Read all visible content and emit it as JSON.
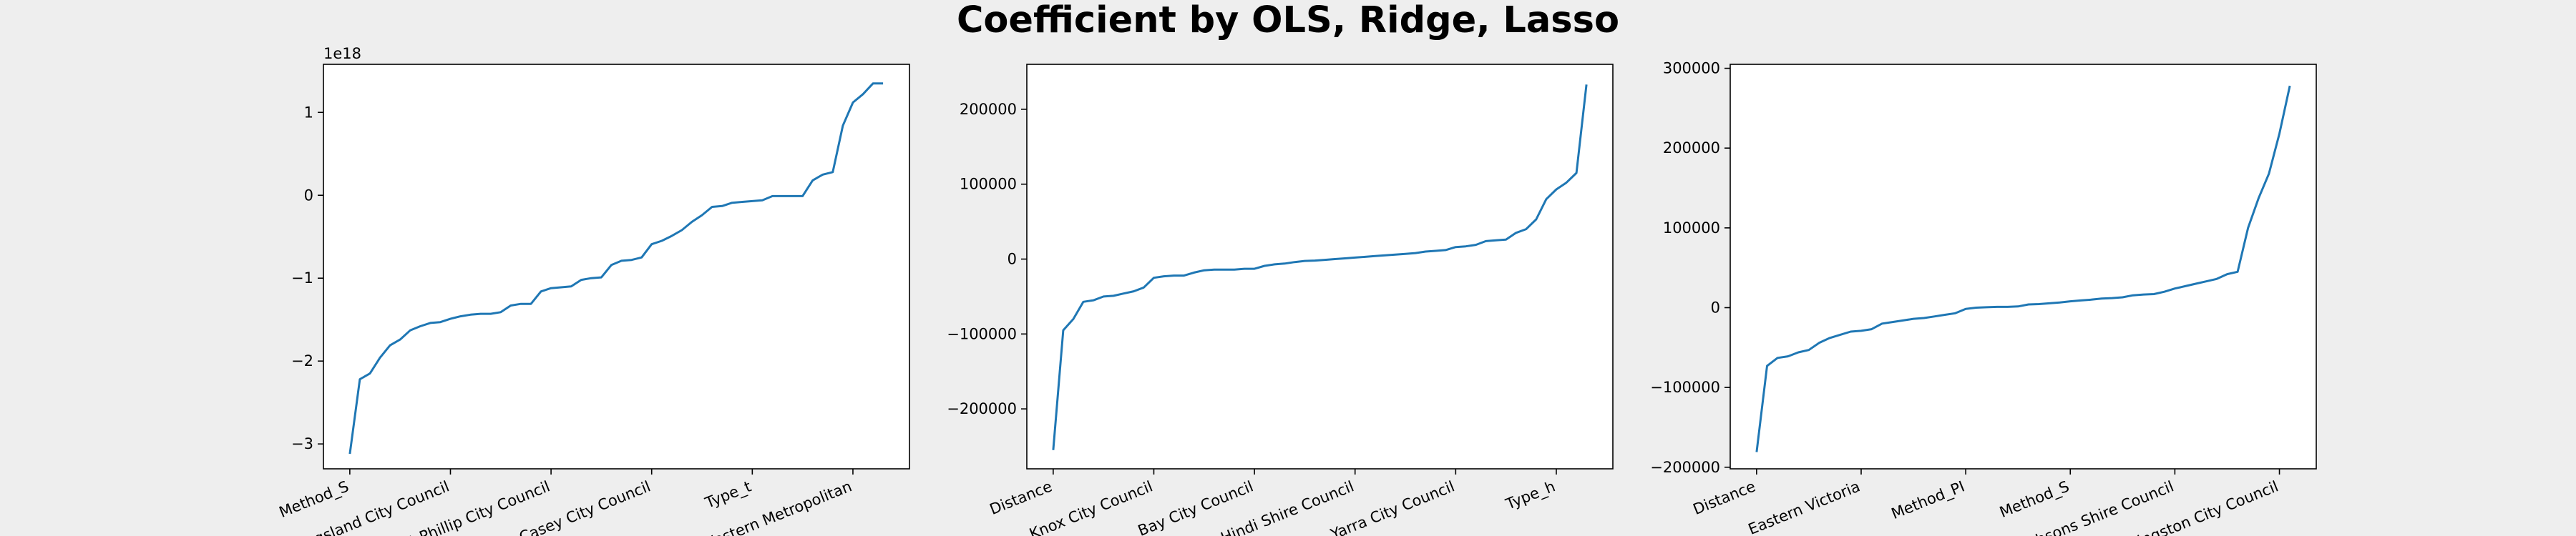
{
  "figure": {
    "title": "Coefficient by OLS, Ridge, Lasso"
  },
  "chart_data": [
    {
      "type": "line",
      "title": "",
      "xlabel": "",
      "ylabel": "",
      "offset_label": "1e18",
      "ylim": [
        -3.3,
        1.58
      ],
      "y_ticks": [
        -3,
        -2,
        -1,
        0,
        1
      ],
      "x_tick_labels": [
        "Method_S",
        "Kingsland City Council",
        "Port Phillip City Council",
        "Casey City Council",
        "Type_t",
        "Western Metropolitan"
      ],
      "color": "#1f77b4",
      "grid": false,
      "series": [
        {
          "values": [
            -3.12,
            -2.22,
            -2.15,
            -1.96,
            -1.81,
            -1.74,
            -1.63,
            -1.58,
            -1.54,
            -1.53,
            -1.49,
            -1.46,
            -1.44,
            -1.43,
            -1.43,
            -1.41,
            -1.33,
            -1.31,
            -1.31,
            -1.16,
            -1.12,
            -1.11,
            -1.1,
            -1.02,
            -1.0,
            -0.99,
            -0.84,
            -0.79,
            -0.78,
            -0.75,
            -0.59,
            -0.55,
            -0.49,
            -0.42,
            -0.32,
            -0.24,
            -0.14,
            -0.13,
            -0.09,
            -0.08,
            -0.07,
            -0.06,
            -0.01,
            -0.01,
            -0.01,
            -0.01,
            0.18,
            0.25,
            0.28,
            0.84,
            1.12,
            1.22,
            1.35,
            1.35
          ]
        }
      ]
    },
    {
      "type": "line",
      "title": "",
      "xlabel": "",
      "ylabel": "",
      "ylim": [
        -280000,
        260000
      ],
      "y_ticks": [
        -200000,
        -100000,
        0,
        100000,
        200000
      ],
      "x_tick_labels": [
        "Distance",
        "Knox City Council",
        "Bay City Council",
        "Hindi Shire Council",
        "Yarra City Council",
        "Type_h"
      ],
      "color": "#1f77b4",
      "grid": false,
      "series": [
        {
          "values": [
            -255000,
            -95000,
            -80000,
            -57000,
            -55000,
            -50000,
            -49000,
            -46000,
            -43000,
            -38000,
            -25000,
            -23000,
            -22000,
            -22000,
            -18000,
            -15000,
            -14000,
            -14000,
            -14000,
            -13000,
            -13000,
            -9000,
            -7000,
            -6000,
            -4000,
            -2500,
            -2000,
            -1000,
            0,
            1000,
            2000,
            3000,
            4000,
            5000,
            6000,
            7000,
            8000,
            10000,
            11000,
            12000,
            16000,
            17000,
            19000,
            24000,
            25000,
            26000,
            35000,
            40000,
            53000,
            80000,
            93000,
            102000,
            115000,
            233000
          ]
        }
      ]
    },
    {
      "type": "line",
      "title": "",
      "xlabel": "",
      "ylabel": "",
      "ylim": [
        -202000,
        305000
      ],
      "y_ticks": [
        -200000,
        -100000,
        0,
        100000,
        200000,
        300000
      ],
      "x_tick_labels": [
        "Distance",
        "Eastern Victoria",
        "Method_PI",
        "Method_S",
        "Hobsons Shire Council",
        "Kingston City Council"
      ],
      "color": "#1f77b4",
      "grid": false,
      "series": [
        {
          "values": [
            -181000,
            -73000,
            -63000,
            -61000,
            -56000,
            -53000,
            -44000,
            -38000,
            -34000,
            -30000,
            -29000,
            -27000,
            -20000,
            -18000,
            -16000,
            -14000,
            -13000,
            -11000,
            -9000,
            -7000,
            -1500,
            0,
            500,
            1000,
            1000,
            1500,
            4000,
            4500,
            5500,
            6500,
            8000,
            9000,
            10000,
            11500,
            12000,
            13000,
            15500,
            16500,
            17000,
            20000,
            24000,
            27000,
            30000,
            33000,
            36000,
            42000,
            45000,
            100000,
            137000,
            168000,
            218000,
            278000
          ]
        }
      ]
    }
  ]
}
